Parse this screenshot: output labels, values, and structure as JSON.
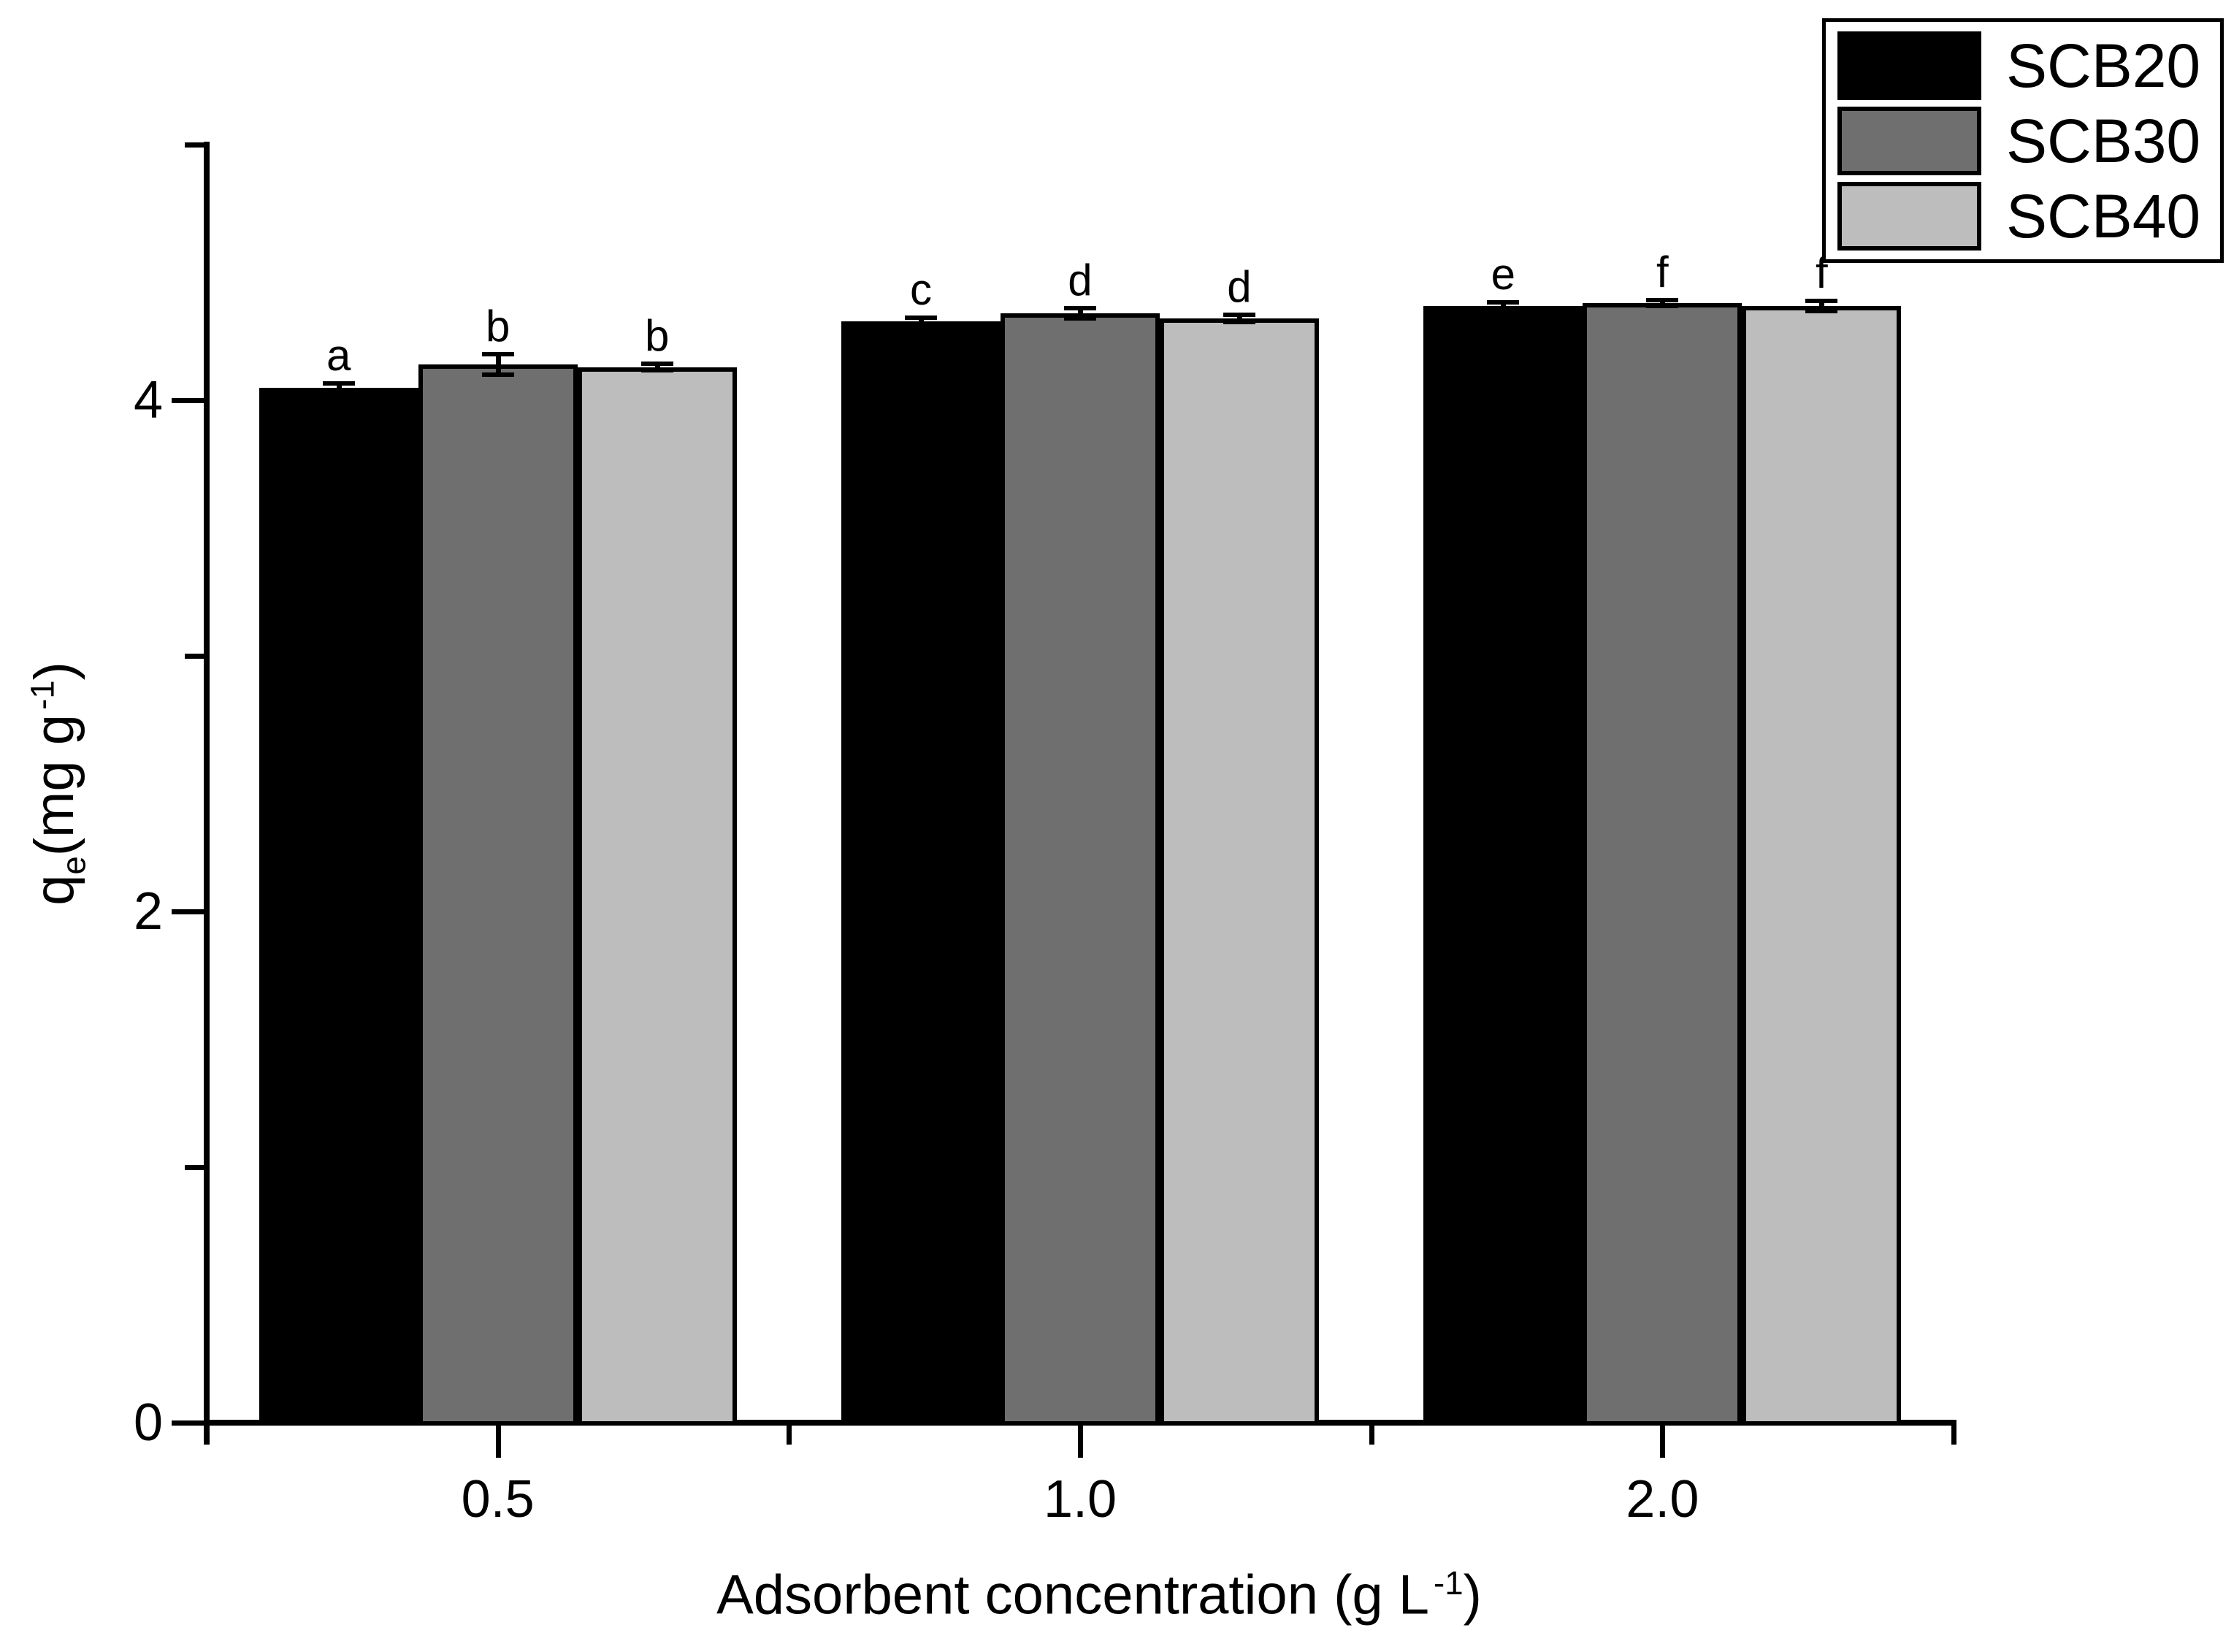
{
  "figure": {
    "background": "#ffffff"
  },
  "chart_data": {
    "type": "bar",
    "title": "",
    "categories": [
      "0.5",
      "1.0",
      "2.0"
    ],
    "series": [
      {
        "name": "SCB20",
        "color": "#000000",
        "values": [
          4.05,
          4.31,
          4.37
        ],
        "errors": [
          0.015,
          0.012,
          0.012
        ],
        "sig_letters": [
          "a",
          "c",
          "e"
        ]
      },
      {
        "name": "SCB30",
        "color": "#6f6f6f",
        "values": [
          4.14,
          4.34,
          4.38
        ],
        "errors": [
          0.04,
          0.02,
          0.012
        ],
        "sig_letters": [
          "b",
          "d",
          "f"
        ]
      },
      {
        "name": "SCB40",
        "color": "#bdbdbd",
        "values": [
          4.13,
          4.32,
          4.37
        ],
        "errors": [
          0.012,
          0.014,
          0.02
        ],
        "sig_letters": [
          "b",
          "d",
          "f"
        ]
      }
    ],
    "bar_outline_color": "#000000",
    "xlabel": {
      "text": "Adsorbent concentration (g L",
      "sup": "-1",
      "close": ")"
    },
    "ylabel": {
      "base": "q",
      "sub": "e",
      "mid": "(mg g",
      "sup": "-1",
      "close": ")"
    },
    "yticks": {
      "major": [
        0,
        2,
        4
      ],
      "labels": [
        "0",
        "2",
        "4"
      ],
      "minor": [
        1,
        3,
        5
      ]
    },
    "ylim": [
      0,
      5
    ],
    "grid": false,
    "legend": {
      "position": "top-right"
    }
  }
}
